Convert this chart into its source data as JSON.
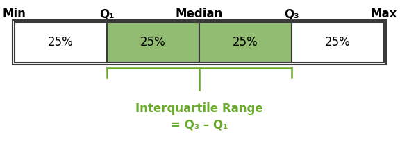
{
  "quartile_labels": [
    "25%",
    "25%",
    "25%",
    "25%"
  ],
  "header_labels": [
    "Min",
    "Q₁",
    "Median",
    "Q₃",
    "Max"
  ],
  "bar_colors": [
    "#ffffff",
    "#92bc72",
    "#92bc72",
    "#ffffff"
  ],
  "bar_edge_color": "#3a3a3a",
  "green_color": "#6aaa2a",
  "bracket_color": "#6aaa2a",
  "iqr_label": "Interquartile Range",
  "iqr_formula": "= Q₃ – Q₁",
  "background_color": "#ffffff"
}
